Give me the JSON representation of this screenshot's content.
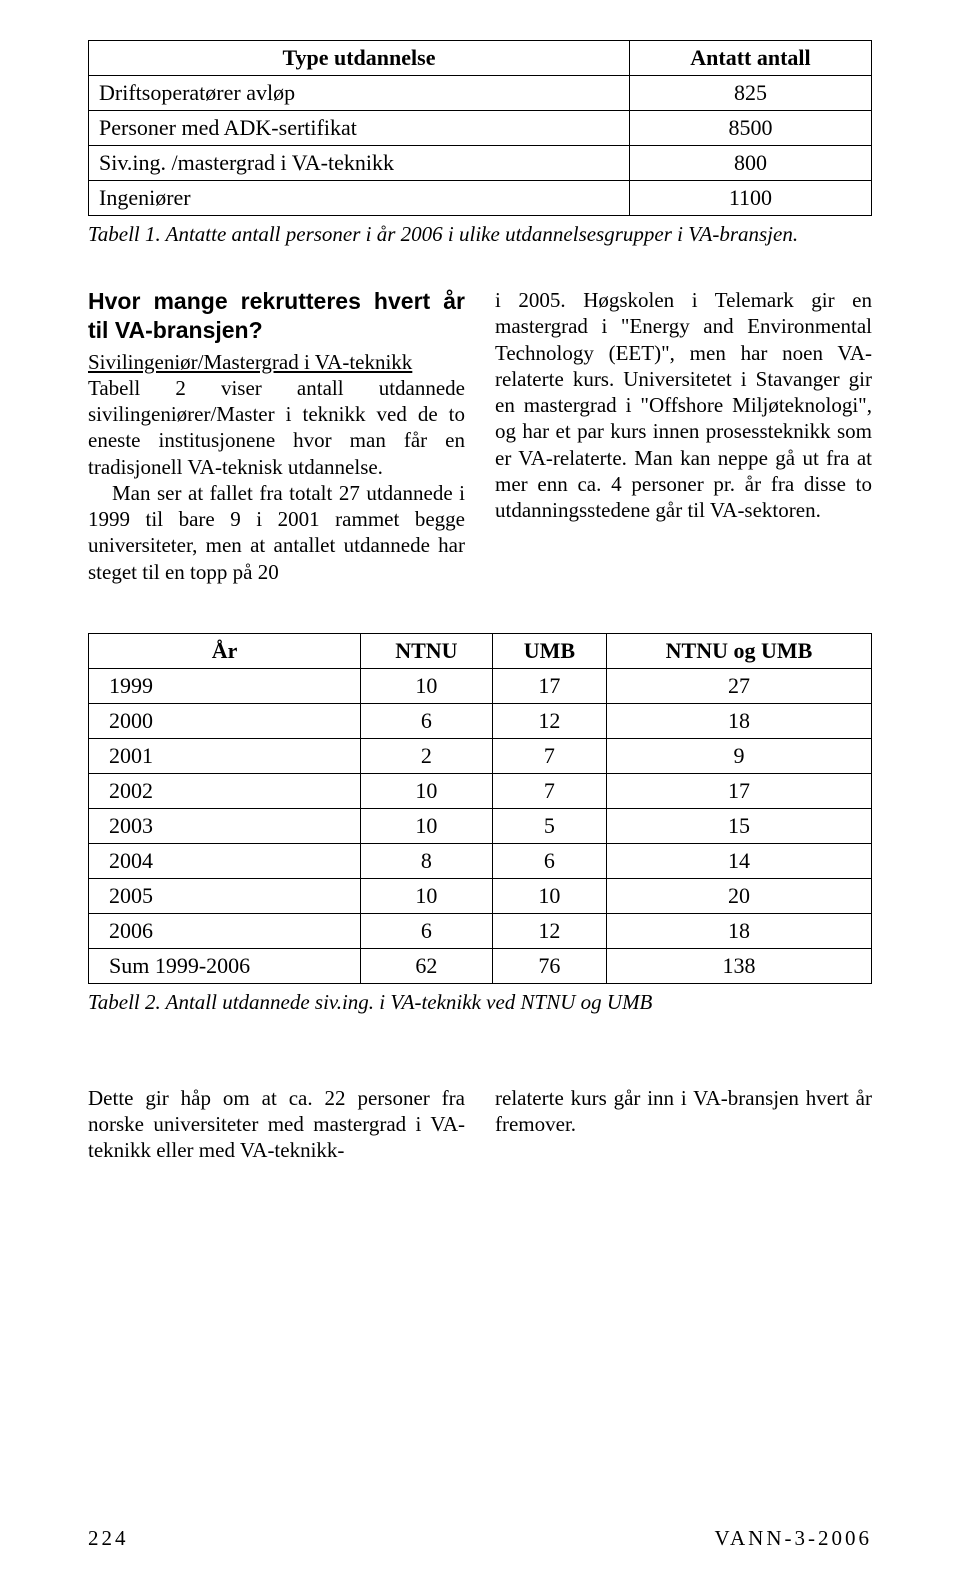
{
  "table1": {
    "headers": [
      "Type utdannelse",
      "Antatt antall"
    ],
    "rows": [
      [
        "Driftsoperatører avløp",
        "825"
      ],
      [
        "Personer med ADK-sertifikat",
        "8500"
      ],
      [
        "Siv.ing. /mastergrad i VA-teknikk",
        "800"
      ],
      [
        "Ingeniører",
        "1100"
      ]
    ],
    "caption": "Tabell 1. Antatte antall personer i år 2006 i ulike utdannelsesgrupper i VA-bransjen."
  },
  "left_col": {
    "heading": "Hvor mange rekrutteres hvert år til VA-bransjen?",
    "subheading": "Sivilingeniør/Mastergrad i VA-teknikk",
    "para1": "Tabell 2 viser antall utdannede sivilingeniører/Master i teknikk ved de to eneste institusjonene hvor man får en tradisjonell VA-teknisk utdannelse.",
    "para2": "Man ser at fallet fra totalt 27 utdannede i 1999 til bare 9 i 2001 rammet begge universiteter, men at antallet utdannede har steget til en topp på 20"
  },
  "right_col": {
    "para": "i 2005. Høgskolen i Telemark gir en mastergrad i \"Energy and Environmental Technology (EET)\", men har noen VA-relaterte kurs. Universitetet i Stavanger gir en mastergrad i \"Offshore Miljøteknologi\", og har et par kurs innen prosessteknikk som er VA-relaterte. Man kan neppe gå ut fra at mer enn ca. 4 personer pr. år fra disse to utdanningsstedene går til VA-sektoren."
  },
  "table2": {
    "headers": [
      "År",
      "NTNU",
      "UMB",
      "NTNU og UMB"
    ],
    "rows": [
      [
        "1999",
        "10",
        "17",
        "27"
      ],
      [
        "2000",
        "6",
        "12",
        "18"
      ],
      [
        "2001",
        "2",
        "7",
        "9"
      ],
      [
        "2002",
        "10",
        "7",
        "17"
      ],
      [
        "2003",
        "10",
        "5",
        "15"
      ],
      [
        "2004",
        "8",
        "6",
        "14"
      ],
      [
        "2005",
        "10",
        "10",
        "20"
      ],
      [
        "2006",
        "6",
        "12",
        "18"
      ],
      [
        "Sum 1999-2006",
        "62",
        "76",
        "138"
      ]
    ],
    "caption": "Tabell 2. Antall utdannede siv.ing. i VA-teknikk ved NTNU og UMB"
  },
  "bottom_left": "Dette gir håp om at ca. 22 personer fra norske universiteter med mastergrad i VA-teknikk eller med VA-teknikk-",
  "bottom_right": "relaterte kurs går inn i VA-bransjen hvert år fremover.",
  "footer": {
    "page": "224",
    "issue": "VANN-3-2006"
  }
}
